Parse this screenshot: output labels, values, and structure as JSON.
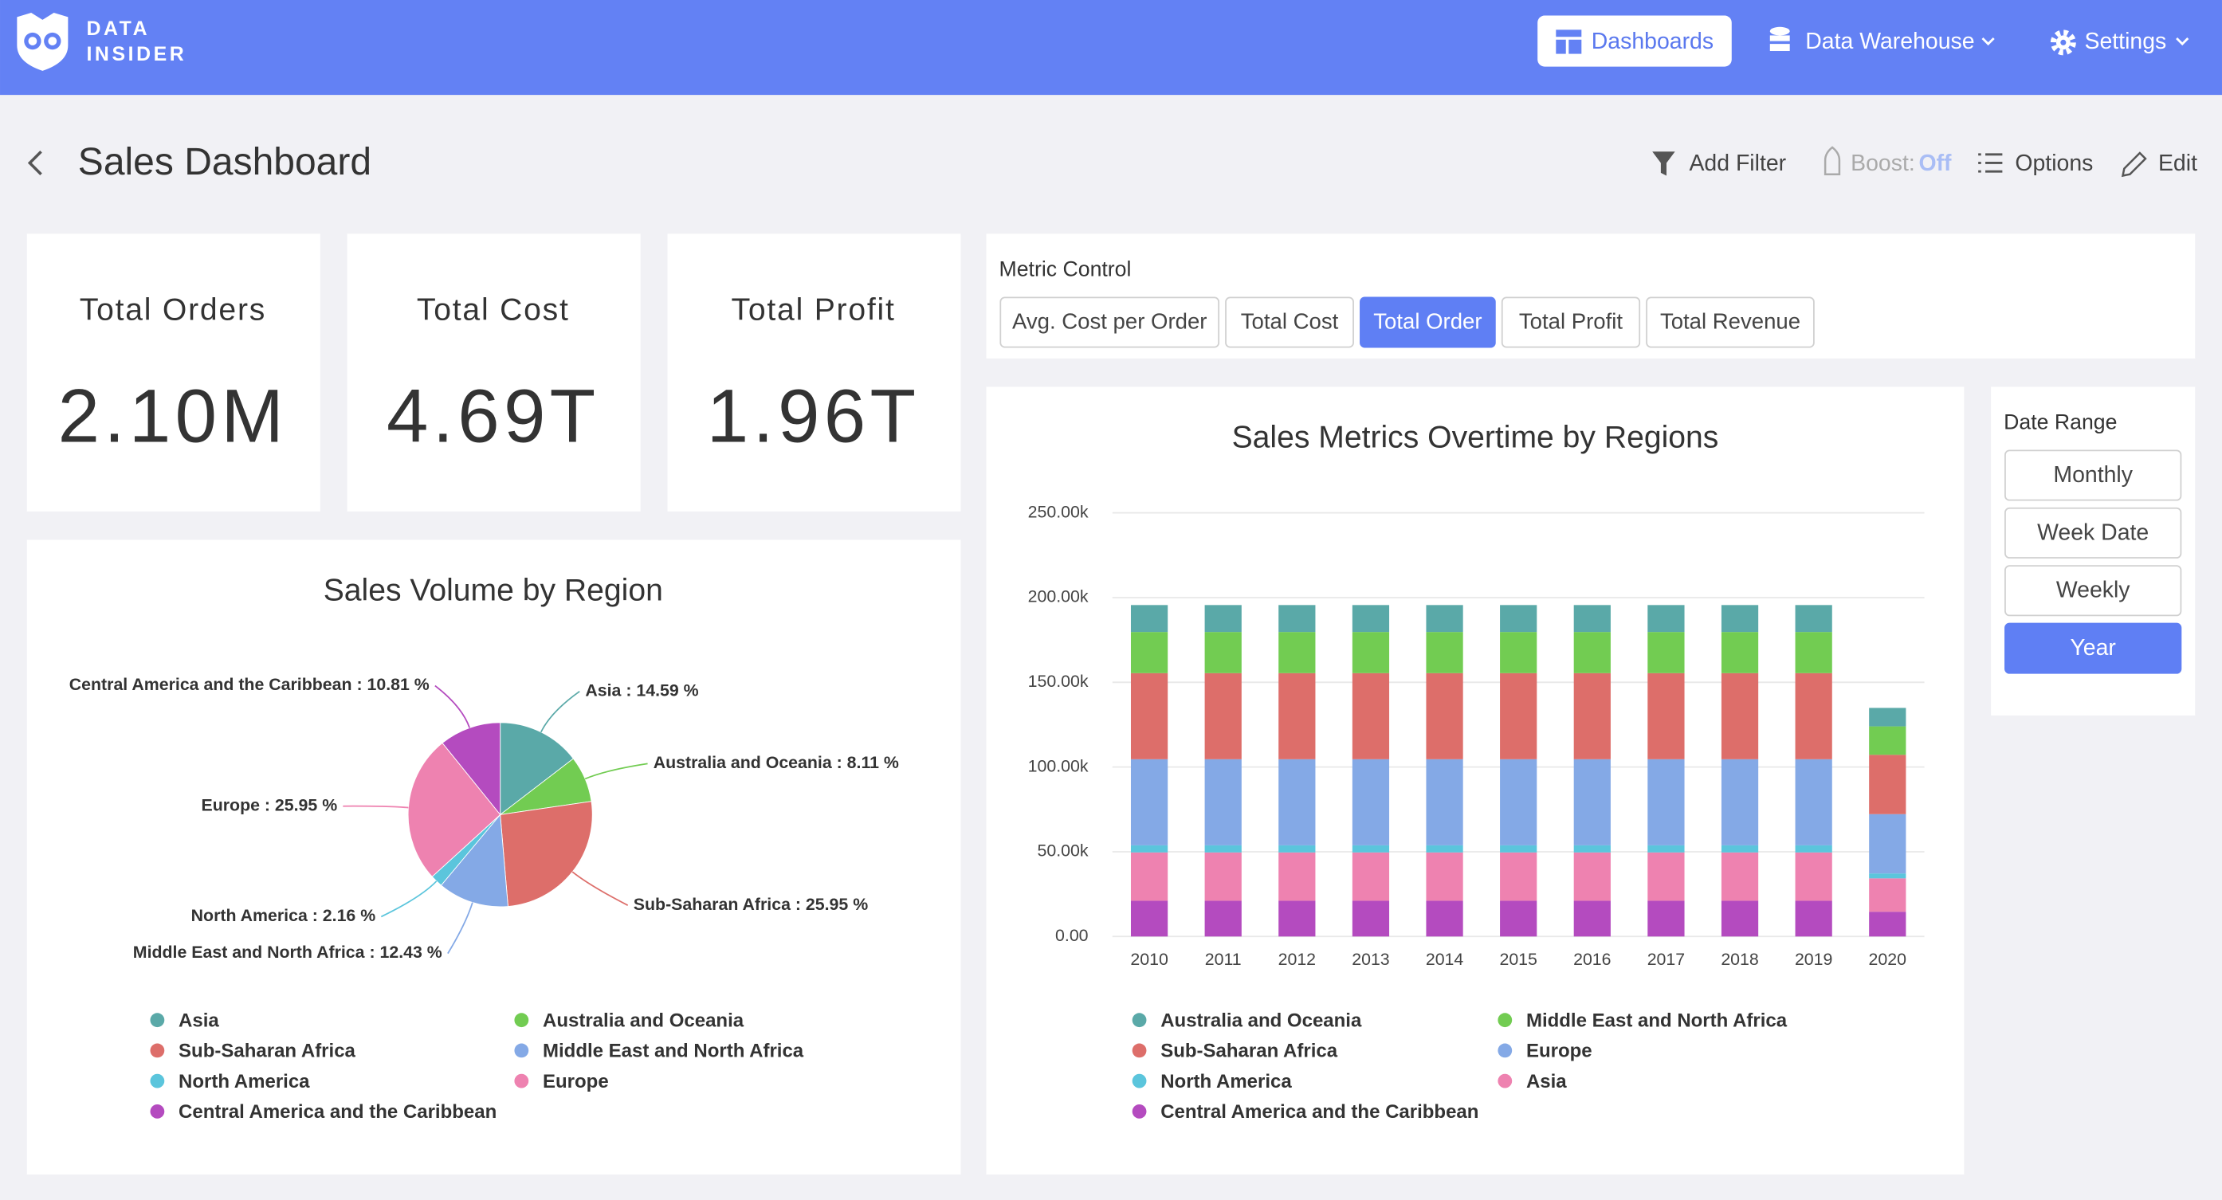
{
  "header": {
    "brand_line1": "DATA",
    "brand_line2": "INSIDER",
    "nav": [
      "Dashboards",
      "Data Warehouse",
      "Settings"
    ]
  },
  "page": {
    "title": "Sales Dashboard",
    "actions": {
      "add_filter": "Add Filter",
      "boost_label": "Boost:",
      "boost_value": "Off",
      "options": "Options",
      "edit": "Edit"
    }
  },
  "kpis": [
    {
      "label": "Total Orders",
      "value": "2.10M"
    },
    {
      "label": "Total Cost",
      "value": "4.69T"
    },
    {
      "label": "Total Profit",
      "value": "1.96T"
    }
  ],
  "metric_control": {
    "title": "Metric Control",
    "options": [
      "Avg. Cost per Order",
      "Total Cost",
      "Total Order",
      "Total Profit",
      "Total Revenue"
    ],
    "selected": 2
  },
  "date_range": {
    "title": "Date Range",
    "options": [
      "Monthly",
      "Week Date",
      "Weekly",
      "Year"
    ],
    "selected": 3
  },
  "chart_data": [
    {
      "type": "pie",
      "title": "Sales Volume by Region",
      "categories": [
        "Asia",
        "Australia and Oceania",
        "Sub-Saharan Africa",
        "Middle East and North Africa",
        "North America",
        "Europe",
        "Central America and the Caribbean"
      ],
      "values": [
        14.59,
        8.11,
        25.95,
        12.43,
        2.16,
        25.95,
        10.81
      ],
      "value_labels": [
        "Asia : 14.59 %",
        "Australia and Oceania : 8.11 %",
        "Sub-Saharan Africa : 25.95 %",
        "Middle East and North Africa : 12.43 %",
        "North America : 2.16 %",
        "Europe : 25.95 %",
        "Central America and the Caribbean : 10.81 %"
      ],
      "colors": [
        "#5aa9a8",
        "#72cc52",
        "#dd6e6a",
        "#84a9e6",
        "#5bc5dc",
        "#ee82b0",
        "#b44bbf"
      ]
    },
    {
      "type": "bar",
      "stacked": true,
      "title": "Sales Metrics Overtime by Regions",
      "categories": [
        "2010",
        "2011",
        "2012",
        "2013",
        "2014",
        "2015",
        "2016",
        "2017",
        "2018",
        "2019",
        "2020"
      ],
      "ylim": [
        0,
        250000
      ],
      "yticks": [
        {
          "value": 0,
          "label": "0.00"
        },
        {
          "value": 50000,
          "label": "50.00k"
        },
        {
          "value": 100000,
          "label": "100.00k"
        },
        {
          "value": 150000,
          "label": "150.00k"
        },
        {
          "value": 200000,
          "label": "200.00k"
        },
        {
          "value": 250000,
          "label": "250.00k"
        }
      ],
      "grid": true,
      "series": [
        {
          "name": "Australia and Oceania",
          "color": "#5aa9a8",
          "values": [
            15900,
            15900,
            15900,
            15900,
            15900,
            15900,
            15900,
            15900,
            15900,
            15900,
            10900
          ]
        },
        {
          "name": "Middle East and North Africa",
          "color": "#72cc52",
          "values": [
            24300,
            24300,
            24300,
            24300,
            24300,
            24300,
            24300,
            24300,
            24300,
            24300,
            16800
          ]
        },
        {
          "name": "Sub-Saharan Africa",
          "color": "#dd6e6a",
          "values": [
            50800,
            50800,
            50800,
            50800,
            50800,
            50800,
            50800,
            50800,
            50800,
            50800,
            35000
          ]
        },
        {
          "name": "Europe",
          "color": "#84a9e6",
          "values": [
            50800,
            50800,
            50800,
            50800,
            50800,
            50800,
            50800,
            50800,
            50800,
            50800,
            35000
          ]
        },
        {
          "name": "North America",
          "color": "#5bc5dc",
          "values": [
            4200,
            4200,
            4200,
            4200,
            4200,
            4200,
            4200,
            4200,
            4200,
            4200,
            2900
          ]
        },
        {
          "name": "Asia",
          "color": "#ee82b0",
          "values": [
            28500,
            28500,
            28500,
            28500,
            28500,
            28500,
            28500,
            28500,
            28500,
            28500,
            19700
          ]
        },
        {
          "name": "Central America and the Caribbean",
          "color": "#b44bbf",
          "values": [
            21100,
            21100,
            21100,
            21100,
            21100,
            21100,
            21100,
            21100,
            21100,
            21100,
            14600
          ]
        }
      ]
    }
  ]
}
